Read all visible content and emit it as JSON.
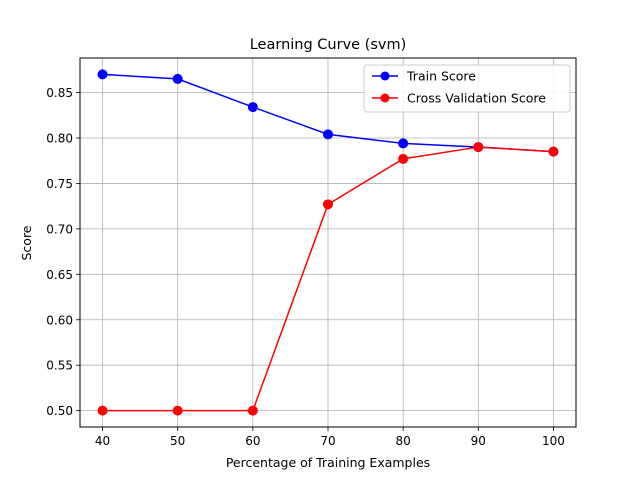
{
  "chart_data": {
    "type": "line",
    "title": "Learning Curve (svm)",
    "xlabel": "Percentage of Training Examples",
    "ylabel": "Score",
    "xlim": [
      37,
      103
    ],
    "ylim": [
      0.482,
      0.888
    ],
    "xticks": [
      40,
      50,
      60,
      70,
      80,
      90,
      100
    ],
    "yticks": [
      0.5,
      0.55,
      0.6,
      0.65,
      0.7,
      0.75,
      0.8,
      0.85
    ],
    "grid": true,
    "legend_position": "top-right",
    "x": [
      40,
      50,
      60,
      70,
      80,
      90,
      100
    ],
    "series": [
      {
        "name": "Train Score",
        "color": "#0000ff",
        "values": [
          0.87,
          0.865,
          0.834,
          0.804,
          0.794,
          0.79,
          0.785
        ]
      },
      {
        "name": "Cross Validation Score",
        "color": "#ff0000",
        "values": [
          0.5,
          0.5,
          0.5,
          0.727,
          0.777,
          0.79,
          0.785
        ]
      }
    ]
  }
}
